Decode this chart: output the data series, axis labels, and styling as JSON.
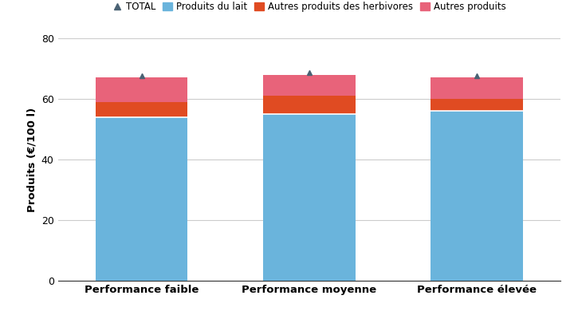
{
  "categories": [
    "Performance faible",
    "Performance moyenne",
    "Performance élevée"
  ],
  "produits_lait": [
    54,
    55,
    56
  ],
  "autres_herbivores": [
    5,
    6,
    4
  ],
  "autres_produits": [
    8,
    7,
    7
  ],
  "totals": [
    67,
    68,
    67
  ],
  "color_lait": "#6ab4dc",
  "color_herbivores": "#e04b22",
  "color_autres": "#e8637a",
  "color_total_marker": "#4a6274",
  "ylabel": "Produits (€/100 l)",
  "ylim": [
    0,
    80
  ],
  "yticks": [
    0,
    20,
    40,
    60,
    80
  ],
  "legend_items": [
    "TOTAL",
    "Produits du lait",
    "Autres produits des herbivores",
    "Autres produits"
  ],
  "bar_width": 0.55,
  "background_color": "#ffffff",
  "grid_color": "#cccccc"
}
